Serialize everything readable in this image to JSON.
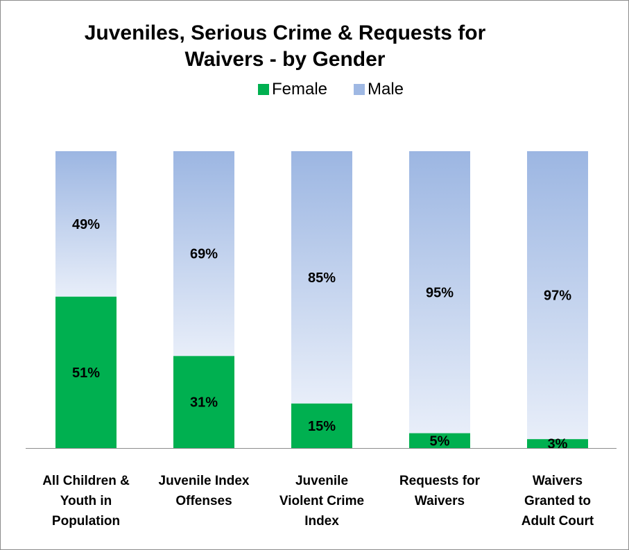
{
  "chart_data": {
    "type": "bar",
    "stacked": true,
    "percent_stacked": true,
    "title": "Juveniles, Serious Crime & Requests for Waivers - by Gender",
    "title_lines": [
      "Juveniles, Serious Crime & Requests for",
      "Waivers - by Gender"
    ],
    "categories": [
      "All Children & Youth in Population",
      "Juvenile Index Offenses",
      "Juvenile Violent Crime Index",
      "Requests for Waivers",
      "Waivers Granted to Adult Court"
    ],
    "category_lines": [
      [
        "All Children &",
        "Youth in",
        "Population"
      ],
      [
        "Juvenile Index",
        "Offenses"
      ],
      [
        "Juvenile",
        "Violent Crime",
        "Index"
      ],
      [
        "Requests for",
        "Waivers"
      ],
      [
        "Waivers",
        "Granted to",
        "Adult Court"
      ]
    ],
    "series": [
      {
        "name": "Female",
        "values": [
          51,
          31,
          15,
          5,
          3
        ],
        "labels": [
          "51%",
          "31%",
          "15%",
          "5%",
          "3%"
        ],
        "color": "#00b050"
      },
      {
        "name": "Male",
        "values": [
          49,
          69,
          85,
          95,
          97
        ],
        "labels": [
          "49%",
          "69%",
          "85%",
          "95%",
          "97%"
        ],
        "color": "#9fb8e3"
      }
    ],
    "ylim": [
      0,
      100
    ],
    "legend_position": "top",
    "grid": false
  }
}
